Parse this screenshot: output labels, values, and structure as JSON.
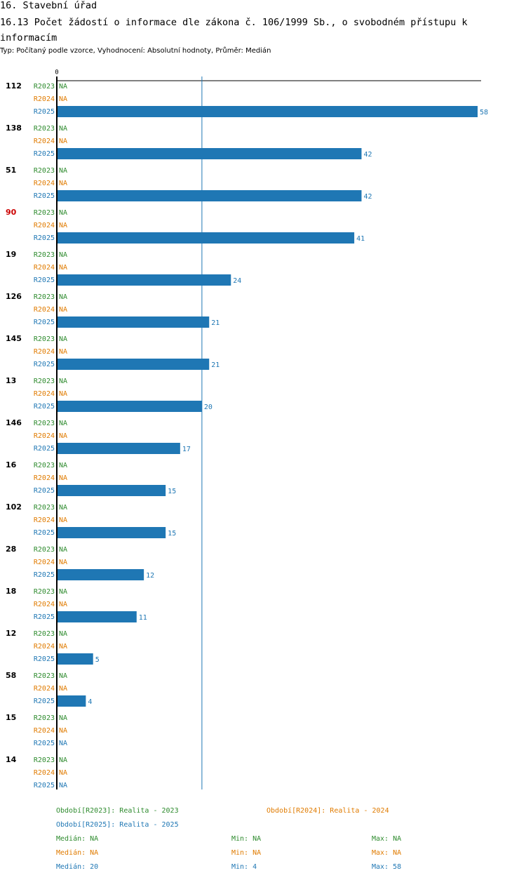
{
  "page": {
    "section_title": "16. Stavební úřad",
    "chart_title": "16.13 Počet žádostí o informace dle zákona č. 106/1999 Sb., o svobodném přístupu k informacím",
    "subtitle": "Typ: Počítaný podle vzorce, Vyhodnocení: Absolutní hodnoty, Průměr: Medián"
  },
  "colors": {
    "R2023": "#2e8b2e",
    "R2024": "#e07b00",
    "R2025": "#1f77b4",
    "highlight": "#cc0000"
  },
  "chart_data": {
    "type": "bar",
    "orientation": "horizontal",
    "x_tick_label": "0",
    "xlim": [
      0,
      58
    ],
    "median_line": 20,
    "na_label": "NA",
    "categories": [
      "112",
      "138",
      "51",
      "90",
      "19",
      "126",
      "145",
      "13",
      "146",
      "16",
      "102",
      "28",
      "18",
      "12",
      "58",
      "15",
      "14"
    ],
    "highlighted_category": "90",
    "series": [
      {
        "name": "R2023",
        "values": [
          null,
          null,
          null,
          null,
          null,
          null,
          null,
          null,
          null,
          null,
          null,
          null,
          null,
          null,
          null,
          null,
          null
        ]
      },
      {
        "name": "R2024",
        "values": [
          null,
          null,
          null,
          null,
          null,
          null,
          null,
          null,
          null,
          null,
          null,
          null,
          null,
          null,
          null,
          null,
          null
        ]
      },
      {
        "name": "R2025",
        "values": [
          58,
          42,
          42,
          41,
          24,
          21,
          21,
          20,
          17,
          15,
          15,
          12,
          11,
          5,
          4,
          null,
          null
        ]
      }
    ]
  },
  "legend": {
    "periods": [
      {
        "key": "R2023",
        "text": "Období[R2023]: Realita - 2023"
      },
      {
        "key": "R2024",
        "text": "Období[R2024]: Realita - 2024"
      },
      {
        "key": "R2025",
        "text": "Období[R2025]: Realita - 2025"
      }
    ],
    "stats": [
      {
        "key": "R2023",
        "median": "Medián: NA",
        "min": "Min: NA",
        "max": "Max: NA"
      },
      {
        "key": "R2024",
        "median": "Medián: NA",
        "min": "Min: NA",
        "max": "Max: NA"
      },
      {
        "key": "R2025",
        "median": "Medián: 20",
        "min": "Min: 4",
        "max": "Max: 58"
      }
    ]
  }
}
